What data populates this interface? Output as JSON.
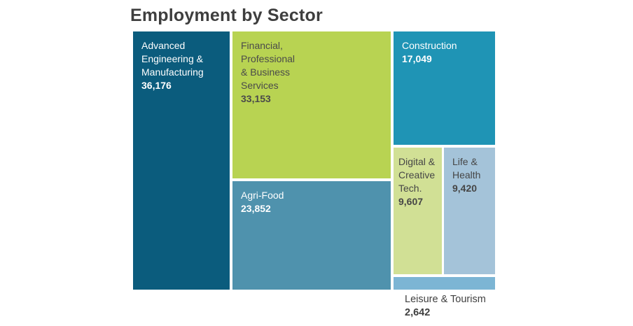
{
  "title": "Employment by Sector",
  "colors": {
    "background": "#ffffff",
    "title_text": "#3e3e3e"
  },
  "chart_data": {
    "type": "treemap",
    "title": "Employment by Sector",
    "legend": "none",
    "total": 131899,
    "tiles": [
      {
        "label": "Advanced Engineering & Manufacturing",
        "label_display": "Advanced\nEngineering &\nManufacturing",
        "value": 36176,
        "value_text": "36,176",
        "color": "#0b5c7d",
        "text_color": "#ffffff"
      },
      {
        "label": "Financial, Professional & Business Services",
        "label_display": "Financial,\nProfessional\n& Business\nServices",
        "value": 33153,
        "value_text": "33,153",
        "color": "#b8d352",
        "text_color": "#4a4a4a"
      },
      {
        "label": "Construction",
        "label_display": "Construction",
        "value": 17049,
        "value_text": "17,049",
        "color": "#1f94b5",
        "text_color": "#ffffff"
      },
      {
        "label": "Agri-Food",
        "label_display": "Agri-Food",
        "value": 23852,
        "value_text": "23,852",
        "color": "#4f92ad",
        "text_color": "#ffffff"
      },
      {
        "label": "Digital & Creative Tech.",
        "label_display": "Digital &\nCreative\nTech.",
        "value": 9607,
        "value_text": "9,607",
        "color": "#d1e095",
        "text_color": "#464646"
      },
      {
        "label": "Life & Health",
        "label_display": "Life &\nHealth",
        "value": 9420,
        "value_text": "9,420",
        "color": "#a4c3d9",
        "text_color": "#464646"
      },
      {
        "label": "Leisure & Tourism",
        "label_display": "Leisure & Tourism",
        "value": 2642,
        "value_text": "2,642",
        "color": "#7cb5d4",
        "text_color": "#3f3f3f"
      }
    ]
  }
}
